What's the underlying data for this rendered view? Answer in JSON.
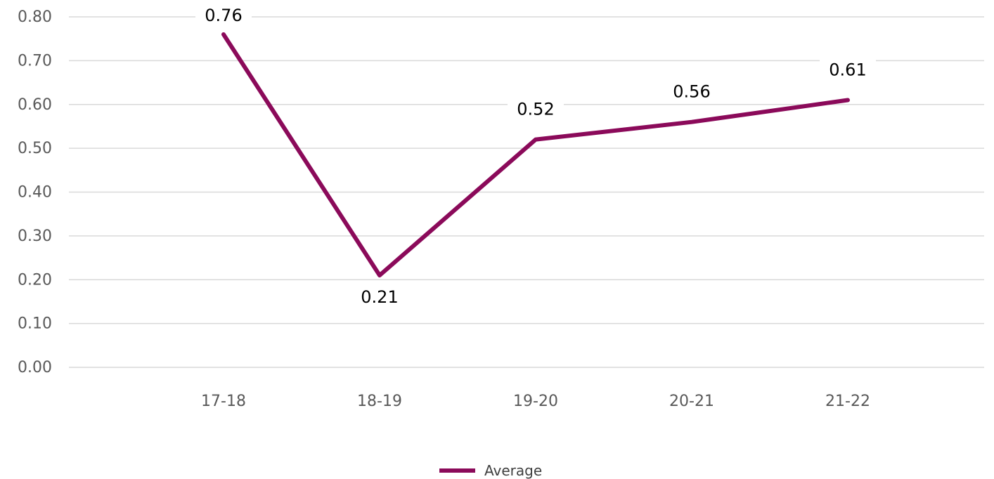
{
  "chart_data": {
    "type": "line",
    "categories": [
      "17-18",
      "18-19",
      "19-20",
      "20-21",
      "21-22"
    ],
    "series": [
      {
        "name": "Average",
        "values": [
          0.76,
          0.21,
          0.52,
          0.56,
          0.61
        ],
        "labels": [
          "0.76",
          "0.21",
          "0.52",
          "0.56",
          "0.61"
        ],
        "color": "#8B0A5A"
      }
    ],
    "y_ticks": [
      "0.00",
      "0.10",
      "0.20",
      "0.30",
      "0.40",
      "0.50",
      "0.60",
      "0.70",
      "0.80"
    ],
    "ylim": [
      0,
      0.8
    ],
    "grid": true,
    "legend_position": "bottom",
    "title": "",
    "xlabel": "",
    "ylabel": ""
  }
}
